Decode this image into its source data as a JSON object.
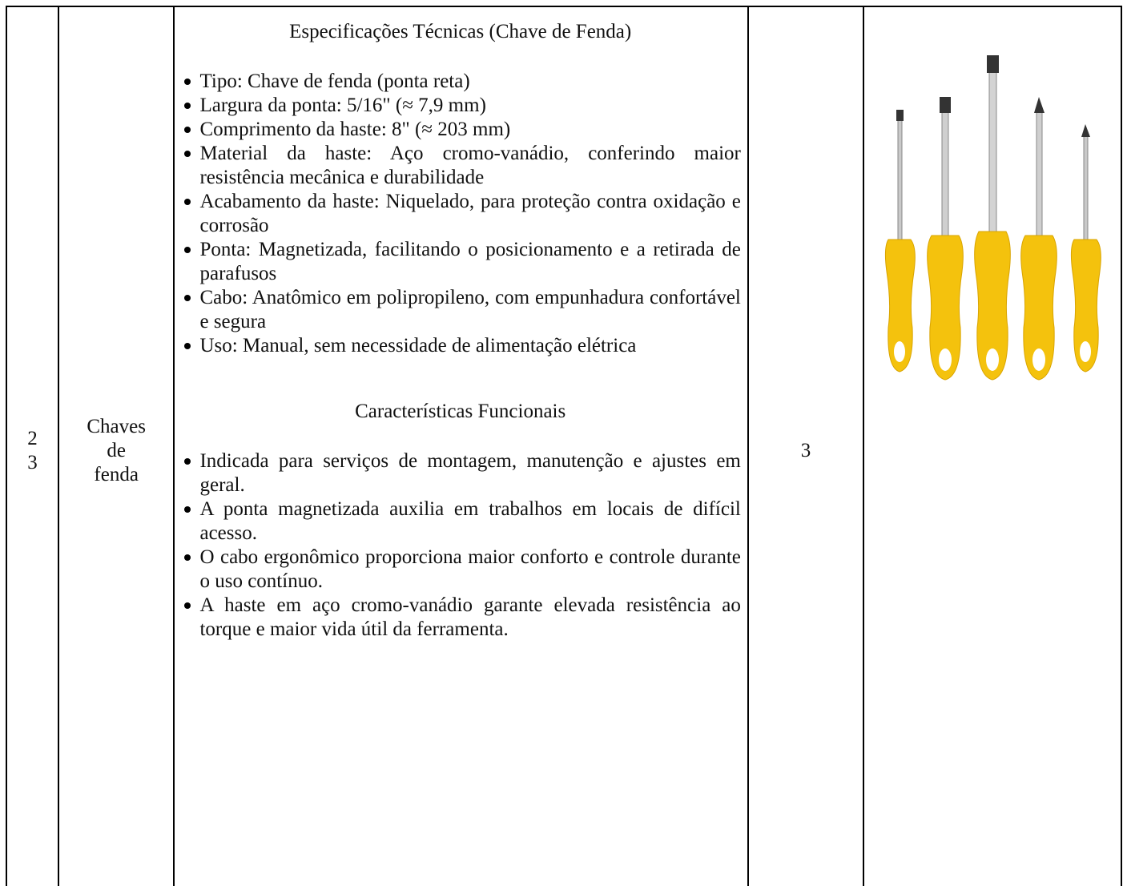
{
  "table": {
    "rows": [
      {
        "item": "23",
        "name": "Chaves de fenda",
        "spec_title": "Especificações Técnicas (Chave de Fenda)",
        "spec_items": [
          "Tipo: Chave de fenda (ponta reta)",
          "Largura da ponta: 5/16\" (≈ 7,9 mm)",
          "Comprimento da haste: 8\" (≈ 203 mm)",
          "Material da haste: Aço cromo-vanádio, conferindo maior resistência mecânica e durabilidade",
          "Acabamento da haste: Niquelado, para proteção contra oxidação e corrosão",
          "Ponta: Magnetizada, facilitando o posicionamento e a retirada de parafusos",
          "Cabo: Anatômico em polipropileno, com empunhadura confortável e segura",
          "Uso: Manual, sem necessidade de alimentação elétrica"
        ],
        "func_title": "Características Funcionais",
        "func_items": [
          "Indicada para serviços de montagem, manutenção e ajustes em geral.",
          "A ponta magnetizada auxilia em trabalhos em locais de difícil acesso.",
          "O cabo ergonômico proporciona maior conforto e controle durante o uso contínuo.",
          "A haste em aço cromo-vanádio garante elevada resistência ao torque e maior vida útil da ferramenta."
        ],
        "quantity": "3"
      }
    ]
  }
}
